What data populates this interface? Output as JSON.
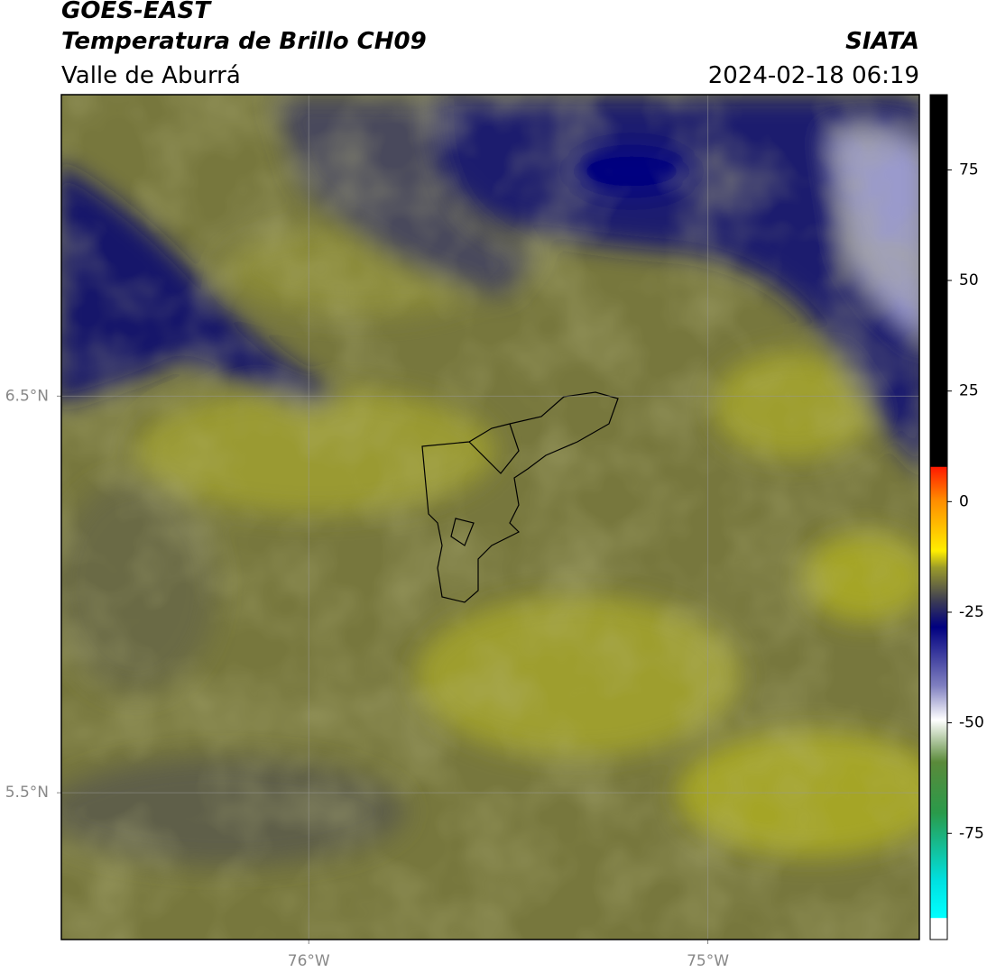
{
  "header": {
    "title": "GOES-EAST",
    "subtitle": "Temperatura de Brillo CH09",
    "region": "Valle de Aburrá",
    "org": "SIATA",
    "datetime": "2024-02-18 06:19"
  },
  "map": {
    "lonlim": [
      -76.62,
      -74.47
    ],
    "latlim": [
      5.13,
      7.26
    ],
    "lonticks": [
      {
        "value": -76,
        "label": "76°W"
      },
      {
        "value": -75,
        "label": "75°W"
      }
    ],
    "latticks": [
      {
        "value": 6.5,
        "label": "6.5°N"
      },
      {
        "value": 5.5,
        "label": "5.5°N"
      }
    ]
  },
  "colorbar": {
    "lim": [
      -99,
      92
    ],
    "ticks": [
      75,
      50,
      25,
      0,
      -25,
      -50,
      -75
    ]
  }
}
